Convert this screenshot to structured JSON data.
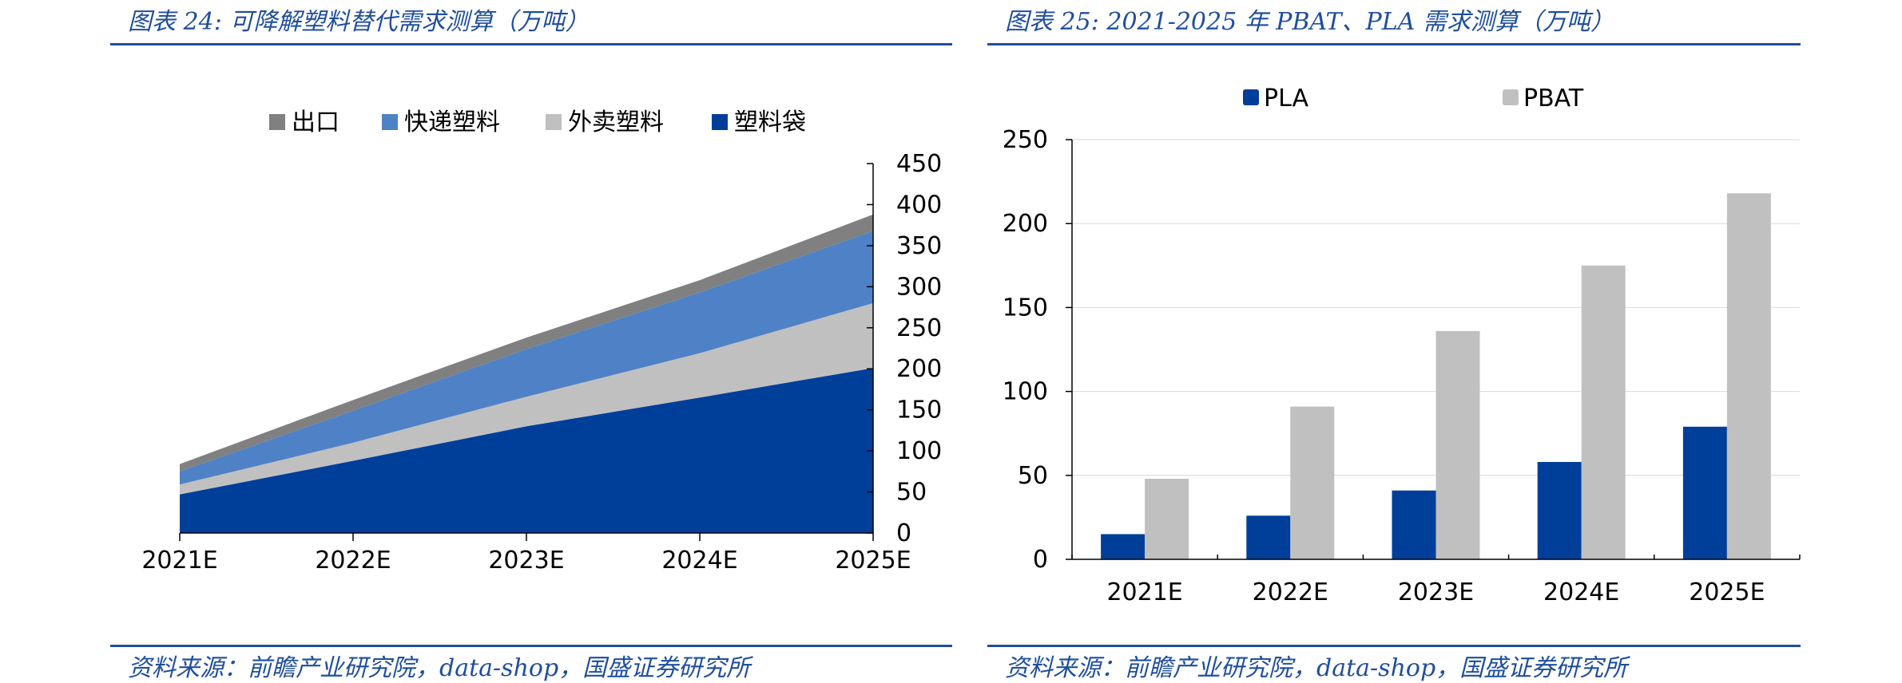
{
  "left_figure": {
    "title": "图表 24:  可降解塑料替代需求测算（万吨）",
    "source": "资料来源：前瞻产业研究院，data-shop，国盛证券研究所"
  },
  "right_figure": {
    "title": "图表 25:  2021-2025 年 PBAT、PLA 需求测算（万吨）",
    "source": "资料来源：前瞻产业研究院，data-shop，国盛证券研究所"
  },
  "chart_data": [
    {
      "type": "area",
      "stacked": true,
      "title": "可降解塑料替代需求测算（万吨）",
      "categories": [
        "2021E",
        "2022E",
        "2023E",
        "2024E",
        "2025E"
      ],
      "ylim": [
        0,
        450
      ],
      "yticks": [
        0,
        50,
        100,
        150,
        200,
        250,
        300,
        350,
        400,
        450
      ],
      "y_axis_side": "right",
      "legend_position": "top",
      "legend_order": [
        "出口",
        "快递塑料",
        "外卖塑料",
        "塑料袋"
      ],
      "series": [
        {
          "name": "塑料袋",
          "color": "#003f99",
          "values": [
            47,
            88,
            130,
            165,
            201
          ]
        },
        {
          "name": "外卖塑料",
          "color": "#c0c0c0",
          "values": [
            12,
            22,
            36,
            54,
            79
          ]
        },
        {
          "name": "快递塑料",
          "color": "#4f81c7",
          "values": [
            16,
            39,
            58,
            74,
            88
          ]
        },
        {
          "name": "出口",
          "color": "#808080",
          "values": [
            9,
            13,
            14,
            15,
            20
          ]
        }
      ]
    },
    {
      "type": "bar",
      "title": "2021-2025 年 PBAT、PLA 需求测算（万吨）",
      "categories": [
        "2021E",
        "2022E",
        "2023E",
        "2024E",
        "2025E"
      ],
      "ylim": [
        0,
        250
      ],
      "yticks": [
        0,
        50,
        100,
        150,
        200,
        250
      ],
      "grid": true,
      "legend_position": "top",
      "series": [
        {
          "name": "PLA",
          "color": "#003f99",
          "values": [
            15,
            26,
            41,
            58,
            79
          ]
        },
        {
          "name": "PBAT",
          "color": "#c0c0c0",
          "values": [
            48,
            91,
            136,
            175,
            218
          ]
        }
      ]
    }
  ]
}
